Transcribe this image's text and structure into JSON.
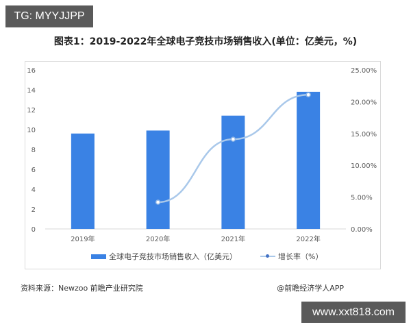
{
  "overlay": {
    "top_left_tag": "TG: MYYJJPP",
    "bottom_right_site": "www.xxt818.com"
  },
  "chart_data": {
    "type": "bar",
    "title": "图表1：2019-2022年全球电子竞技市场销售收入(单位：亿美元，%)",
    "categories": [
      "2019年",
      "2020年",
      "2021年",
      "2022年"
    ],
    "series": [
      {
        "name": "全球电子竞技市场销售收入（亿美元）",
        "type": "bar",
        "axis": "left",
        "color": "#3a82e4",
        "values": [
          9.6,
          9.9,
          11.4,
          13.8
        ]
      },
      {
        "name": "增长率（%）",
        "type": "line",
        "axis": "right",
        "color": "#a9c8ea",
        "values": [
          null,
          4.2,
          14.1,
          21.1
        ]
      }
    ],
    "left_axis": {
      "ylim": [
        0,
        16
      ],
      "ticks": [
        "0",
        "2",
        "4",
        "6",
        "8",
        "10",
        "12",
        "14",
        "16"
      ]
    },
    "right_axis": {
      "ylim": [
        0,
        25
      ],
      "ticks": [
        "0.00%",
        "5.00%",
        "10.00%",
        "15.00%",
        "20.00%",
        "25.00%"
      ]
    },
    "xlabel": "",
    "ylabel": "",
    "grid": false,
    "legend_position": "bottom"
  },
  "legend": {
    "bar_label": "全球电子竞技市场销售收入（亿美元）",
    "line_label": "增长率（%）"
  },
  "footer": {
    "source": "资料来源：Newzoo 前瞻产业研究院",
    "credit": "@前瞻经济学人APP"
  }
}
